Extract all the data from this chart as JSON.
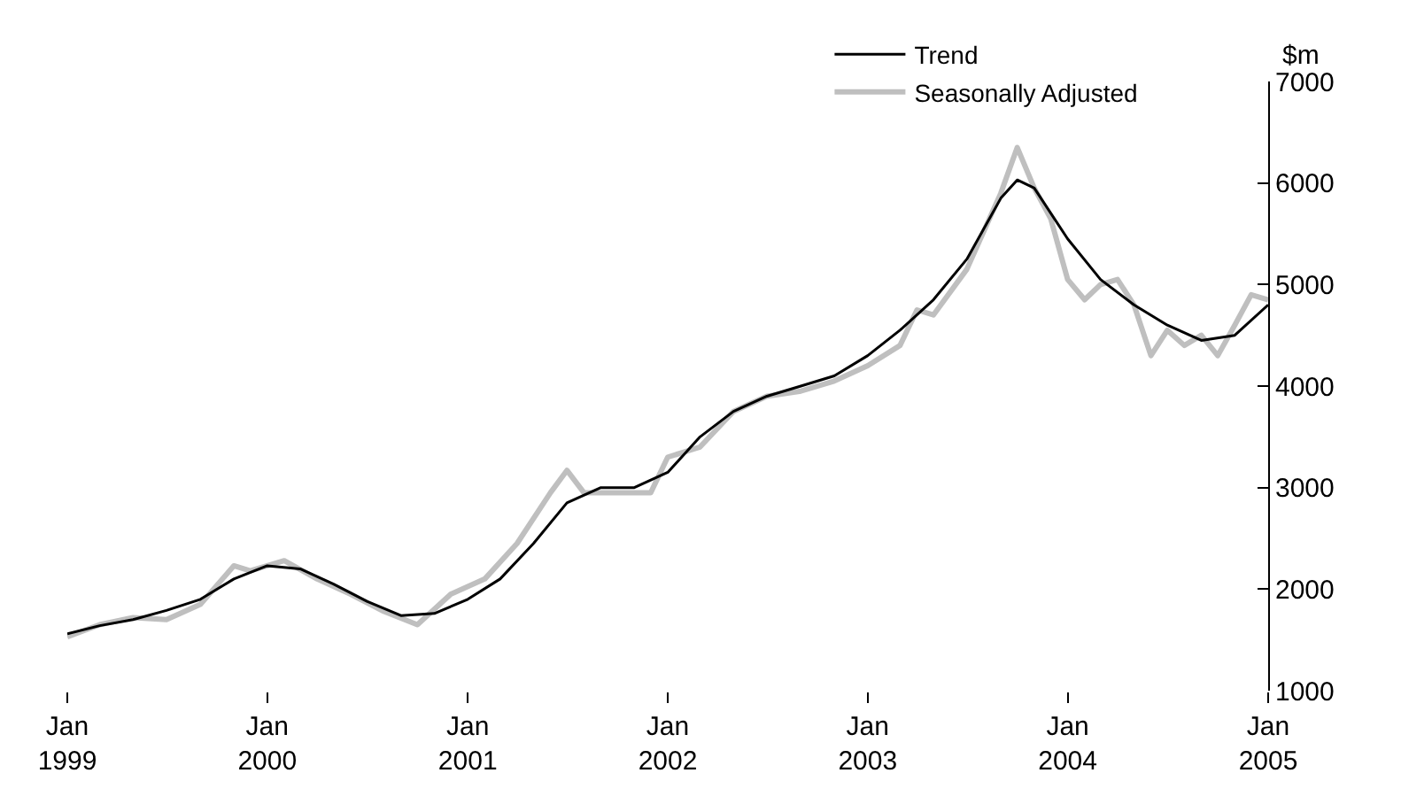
{
  "chart_data": {
    "type": "line",
    "ylabel": "$m",
    "legend": "top right",
    "grid": false,
    "xlim": [
      "1999-01",
      "2005-01"
    ],
    "xticks": [
      {
        "value": "1999-01",
        "label": "Jan\n1999"
      },
      {
        "value": "2000-01",
        "label": "Jan\n2000"
      },
      {
        "value": "2001-01",
        "label": "Jan\n2001"
      },
      {
        "value": "2002-01",
        "label": "Jan\n2002"
      },
      {
        "value": "2003-01",
        "label": "Jan\n2003"
      },
      {
        "value": "2004-01",
        "label": "Jan\n2004"
      },
      {
        "value": "2005-01",
        "label": "Jan\n2005"
      }
    ],
    "ylim": [
      1000,
      7000
    ],
    "yticks": [
      1000,
      2000,
      3000,
      4000,
      5000,
      6000,
      7000
    ],
    "series": [
      {
        "name": "Trend",
        "color": "#000000",
        "x": [
          "1999-01",
          "1999-03",
          "1999-05",
          "1999-07",
          "1999-09",
          "1999-11",
          "2000-01",
          "2000-03",
          "2000-05",
          "2000-07",
          "2000-09",
          "2000-11",
          "2001-01",
          "2001-03",
          "2001-05",
          "2001-07",
          "2001-09",
          "2001-11",
          "2002-01",
          "2002-03",
          "2002-05",
          "2002-07",
          "2002-09",
          "2002-11",
          "2003-01",
          "2003-03",
          "2003-05",
          "2003-07",
          "2003-09",
          "2003-10",
          "2003-11",
          "2004-01",
          "2004-03",
          "2004-05",
          "2004-07",
          "2004-09",
          "2004-11",
          "2005-01"
        ],
        "values": [
          1560,
          1640,
          1700,
          1790,
          1900,
          2100,
          2230,
          2200,
          2050,
          1880,
          1740,
          1760,
          1900,
          2100,
          2450,
          2850,
          3000,
          3000,
          3150,
          3500,
          3750,
          3900,
          4000,
          4100,
          4300,
          4550,
          4850,
          5250,
          5850,
          6030,
          5950,
          5450,
          5050,
          4800,
          4600,
          4450,
          4500,
          4800
        ]
      },
      {
        "name": "Seasonally Adjusted",
        "color": "#bfbfbf",
        "x": [
          "1999-01",
          "1999-03",
          "1999-05",
          "1999-07",
          "1999-09",
          "1999-11",
          "1999-12",
          "2000-02",
          "2000-04",
          "2000-06",
          "2000-08",
          "2000-10",
          "2000-12",
          "2001-02",
          "2001-04",
          "2001-06",
          "2001-07",
          "2001-08",
          "2001-10",
          "2001-12",
          "2002-01",
          "2002-03",
          "2002-05",
          "2002-07",
          "2002-09",
          "2002-11",
          "2003-01",
          "2003-03",
          "2003-04",
          "2003-05",
          "2003-07",
          "2003-09",
          "2003-10",
          "2003-11",
          "2003-12",
          "2004-01",
          "2004-02",
          "2004-03",
          "2004-04",
          "2004-05",
          "2004-06",
          "2004-07",
          "2004-08",
          "2004-09",
          "2004-10",
          "2004-11",
          "2004-12",
          "2005-01"
        ],
        "values": [
          1530,
          1650,
          1720,
          1700,
          1850,
          2230,
          2180,
          2280,
          2100,
          1950,
          1780,
          1650,
          1950,
          2100,
          2450,
          2950,
          3170,
          2950,
          2950,
          2950,
          3300,
          3400,
          3750,
          3900,
          3950,
          4050,
          4200,
          4400,
          4750,
          4700,
          5150,
          5900,
          6350,
          5950,
          5650,
          5050,
          4850,
          5000,
          5050,
          4800,
          4300,
          4550,
          4400,
          4500,
          4300,
          4600,
          4900,
          4850
        ]
      }
    ]
  }
}
